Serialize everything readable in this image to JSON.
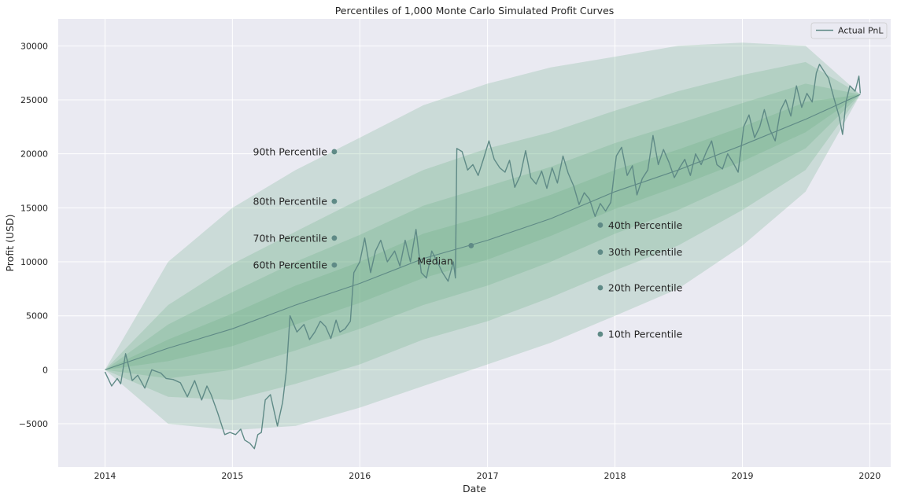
{
  "chart_data": {
    "type": "area",
    "title": "Percentiles of 1,000 Monte Carlo Simulated Profit Curves",
    "xlabel": "Date",
    "ylabel": "Profit (USD)",
    "xlim": [
      "2013-08-20",
      "2020-03-01"
    ],
    "ylim": [
      -9000,
      32500
    ],
    "x_ticks": [
      "2014",
      "2015",
      "2016",
      "2017",
      "2018",
      "2019",
      "2020"
    ],
    "y_ticks": [
      -5000,
      0,
      5000,
      10000,
      15000,
      20000,
      25000,
      30000
    ],
    "grid": true,
    "legend": {
      "placement": "top-right",
      "entries": [
        "Actual PnL"
      ]
    },
    "colors": {
      "background": "#eaeaf2",
      "grid": "#ffffff",
      "band_fill": "#5fa879",
      "line": "#5f8a86",
      "marker": "#5f8a86",
      "text": "#262626"
    },
    "percentile_bands": {
      "x": [
        "2014-01-01",
        "2014-07-01",
        "2015-01-01",
        "2015-07-01",
        "2016-01-01",
        "2016-07-01",
        "2017-01-01",
        "2017-07-01",
        "2018-01-01",
        "2018-07-01",
        "2019-01-01",
        "2019-07-01",
        "2019-12-05"
      ],
      "median": [
        0,
        2000,
        3800,
        6000,
        8000,
        10300,
        12000,
        14000,
        16500,
        18500,
        20800,
        23200,
        25500
      ],
      "bands": [
        {
          "lower": "10th Percentile",
          "upper": "90th Percentile",
          "low": [
            0,
            -5000,
            -5600,
            -5200,
            -3500,
            -1500,
            500,
            2500,
            5000,
            7500,
            11500,
            16500,
            25500
          ],
          "high": [
            0,
            10000,
            15000,
            18500,
            21500,
            24500,
            26500,
            28000,
            29000,
            30000,
            30300,
            30000,
            25500
          ]
        },
        {
          "lower": "20th Percentile",
          "upper": "80th Percentile",
          "low": [
            0,
            -2500,
            -2800,
            -1300,
            500,
            2800,
            4500,
            6700,
            9200,
            11500,
            14800,
            18500,
            25500
          ],
          "high": [
            0,
            6000,
            9800,
            12800,
            15800,
            18500,
            20500,
            22000,
            24000,
            25800,
            27300,
            28500,
            25500
          ]
        },
        {
          "lower": "30th Percentile",
          "upper": "70th Percentile",
          "low": [
            0,
            -800,
            0,
            1800,
            3800,
            6000,
            7800,
            10000,
            12600,
            14800,
            17500,
            20500,
            25500
          ],
          "high": [
            0,
            4200,
            7200,
            10000,
            12500,
            15200,
            17000,
            18800,
            21000,
            22800,
            24700,
            26500,
            25500
          ]
        },
        {
          "lower": "40th Percentile",
          "upper": "60th Percentile",
          "low": [
            0,
            800,
            2200,
            4200,
            6200,
            8500,
            10200,
            12400,
            14900,
            17000,
            19300,
            22000,
            25500
          ],
          "high": [
            0,
            2800,
            5200,
            7800,
            10000,
            12600,
            14300,
            16200,
            18500,
            20400,
            22500,
            24800,
            25500
          ]
        }
      ]
    },
    "annotations": [
      {
        "label": "90th Percentile",
        "x": "2015-10-20",
        "y": 20200,
        "side": "left"
      },
      {
        "label": "80th Percentile",
        "x": "2015-10-20",
        "y": 15600,
        "side": "left"
      },
      {
        "label": "70th Percentile",
        "x": "2015-10-20",
        "y": 12200,
        "side": "left"
      },
      {
        "label": "60th Percentile",
        "x": "2015-10-20",
        "y": 9700,
        "side": "left"
      },
      {
        "label": "Median",
        "x": "2016-11-15",
        "y": 11500,
        "side": "left"
      },
      {
        "label": "40th Percentile",
        "x": "2017-11-20",
        "y": 13400,
        "side": "right"
      },
      {
        "label": "30th Percentile",
        "x": "2017-11-20",
        "y": 10900,
        "side": "right"
      },
      {
        "label": "20th Percentile",
        "x": "2017-11-20",
        "y": 7600,
        "side": "right"
      },
      {
        "label": "10th Percentile",
        "x": "2017-11-20",
        "y": 3300,
        "side": "right"
      }
    ],
    "series": [
      {
        "name": "Actual PnL",
        "x": [
          "2014-01-01",
          "2014-01-20",
          "2014-02-05",
          "2014-02-15",
          "2014-03-01",
          "2014-03-20",
          "2014-04-05",
          "2014-04-25",
          "2014-05-15",
          "2014-06-10",
          "2014-06-25",
          "2014-07-15",
          "2014-08-05",
          "2014-08-25",
          "2014-09-15",
          "2014-10-05",
          "2014-10-20",
          "2014-11-01",
          "2014-11-20",
          "2014-12-10",
          "2014-12-25",
          "2015-01-10",
          "2015-01-25",
          "2015-02-05",
          "2015-02-20",
          "2015-03-05",
          "2015-03-15",
          "2015-03-25",
          "2015-04-05",
          "2015-04-20",
          "2015-05-10",
          "2015-05-25",
          "2015-06-05",
          "2015-06-15",
          "2015-07-05",
          "2015-07-25",
          "2015-08-10",
          "2015-08-25",
          "2015-09-10",
          "2015-09-25",
          "2015-10-10",
          "2015-10-25",
          "2015-11-05",
          "2015-11-20",
          "2015-12-05",
          "2015-12-15",
          "2016-01-01",
          "2016-01-15",
          "2016-02-01",
          "2016-02-15",
          "2016-03-01",
          "2016-03-20",
          "2016-04-10",
          "2016-04-25",
          "2016-05-10",
          "2016-05-25",
          "2016-06-10",
          "2016-06-25",
          "2016-07-10",
          "2016-07-25",
          "2016-08-10",
          "2016-08-25",
          "2016-09-10",
          "2016-09-25",
          "2016-10-01",
          "2016-10-05",
          "2016-10-20",
          "2016-11-05",
          "2016-11-20",
          "2016-12-05",
          "2016-12-20",
          "2017-01-05",
          "2017-01-20",
          "2017-02-05",
          "2017-02-20",
          "2017-03-05",
          "2017-03-20",
          "2017-04-05",
          "2017-04-20",
          "2017-05-05",
          "2017-05-20",
          "2017-06-05",
          "2017-06-20",
          "2017-07-05",
          "2017-07-20",
          "2017-08-05",
          "2017-08-20",
          "2017-09-05",
          "2017-09-20",
          "2017-10-05",
          "2017-10-20",
          "2017-11-05",
          "2017-11-20",
          "2017-12-05",
          "2017-12-20",
          "2018-01-05",
          "2018-01-20",
          "2018-02-05",
          "2018-02-20",
          "2018-03-05",
          "2018-03-20",
          "2018-04-05",
          "2018-04-20",
          "2018-05-05",
          "2018-05-20",
          "2018-06-05",
          "2018-06-20",
          "2018-07-05",
          "2018-07-20",
          "2018-08-05",
          "2018-08-20",
          "2018-09-05",
          "2018-09-20",
          "2018-10-05",
          "2018-10-20",
          "2018-11-05",
          "2018-11-20",
          "2018-12-05",
          "2018-12-20",
          "2019-01-05",
          "2019-01-20",
          "2019-02-05",
          "2019-02-20",
          "2019-03-05",
          "2019-03-20",
          "2019-04-05",
          "2019-04-20",
          "2019-05-05",
          "2019-05-20",
          "2019-06-05",
          "2019-06-20",
          "2019-07-05",
          "2019-07-20",
          "2019-08-01",
          "2019-08-10",
          "2019-08-20",
          "2019-09-05",
          "2019-09-20",
          "2019-10-05",
          "2019-10-15",
          "2019-10-25",
          "2019-11-05",
          "2019-11-20",
          "2019-12-01",
          "2019-12-05"
        ],
        "values": [
          -200,
          -1500,
          -800,
          -1300,
          1500,
          -1000,
          -500,
          -1700,
          0,
          -300,
          -800,
          -900,
          -1200,
          -2500,
          -1000,
          -2800,
          -1500,
          -2300,
          -4000,
          -6000,
          -5800,
          -6000,
          -5500,
          -6500,
          -6800,
          -7300,
          -6000,
          -5800,
          -2800,
          -2300,
          -5200,
          -3000,
          0,
          5000,
          3500,
          4200,
          2800,
          3500,
          4500,
          4000,
          2900,
          4600,
          3500,
          3800,
          4500,
          9000,
          10000,
          12200,
          9000,
          11000,
          12000,
          10000,
          11000,
          9600,
          12000,
          10000,
          13000,
          9000,
          8500,
          11000,
          10000,
          9000,
          8200,
          10000,
          8500,
          20500,
          20200,
          18500,
          19000,
          18000,
          19500,
          21200,
          19500,
          18700,
          18300,
          19400,
          16900,
          18000,
          20300,
          17800,
          17200,
          18400,
          16800,
          18700,
          17300,
          19800,
          18200,
          17000,
          15300,
          16400,
          15800,
          14200,
          15400,
          14700,
          15500,
          19800,
          20600,
          18000,
          18900,
          16200,
          17700,
          18500,
          21700,
          19000,
          20400,
          19200,
          17800,
          18700,
          19500,
          18000,
          20000,
          19000,
          20200,
          21200,
          19000,
          18600,
          20000,
          19200,
          18300,
          22500,
          23600,
          21500,
          22500,
          24100,
          22300,
          21200,
          24000,
          25000,
          23500,
          26300,
          24300,
          25600,
          24800,
          27500,
          28300,
          27800,
          27000,
          25200,
          23500,
          21800,
          24800,
          26300,
          25800,
          27200,
          25600
        ]
      }
    ]
  }
}
